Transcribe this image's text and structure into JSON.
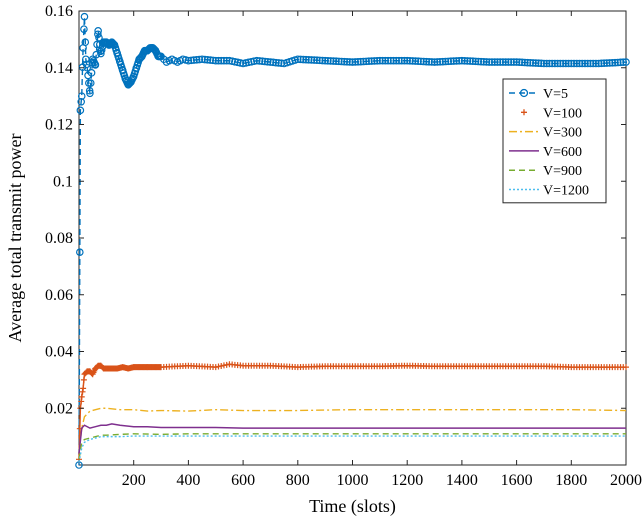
{
  "chart_data": {
    "type": "line",
    "xlabel": "Time (slots)",
    "ylabel": "Average total transmit power",
    "xlim": [
      0,
      2000
    ],
    "ylim": [
      0,
      0.16
    ],
    "xticks": [
      200,
      400,
      600,
      800,
      1000,
      1200,
      1400,
      1600,
      1800,
      2000
    ],
    "xtick_labels": [
      "200",
      "400",
      "600",
      "800",
      "1000",
      "1200",
      "1400",
      "1600",
      "1800",
      "2000"
    ],
    "yticks": [
      0.02,
      0.04,
      0.06,
      0.08,
      0.1,
      0.12,
      0.14,
      0.16
    ],
    "ytick_labels": [
      "0.02",
      "0.04",
      "0.06",
      "0.08",
      "0.1",
      "0.12",
      "0.14",
      "0.16"
    ],
    "grid": false,
    "legend_position": "top-right",
    "series": [
      {
        "name": "V=5",
        "color": "#0072BD",
        "line_style": "dashed",
        "marker": "circle",
        "x": [
          0,
          5,
          10,
          15,
          20,
          25,
          30,
          40,
          50,
          60,
          70,
          80,
          90,
          100,
          110,
          120,
          130,
          140,
          150,
          160,
          170,
          180,
          190,
          200,
          210,
          220,
          230,
          240,
          250,
          260,
          270,
          280,
          290,
          300,
          320,
          340,
          360,
          380,
          400,
          450,
          500,
          550,
          600,
          650,
          700,
          750,
          800,
          900,
          1000,
          1100,
          1200,
          1300,
          1400,
          1500,
          1600,
          1700,
          1800,
          1900,
          2000
        ],
        "y": [
          0.0,
          0.125,
          0.13,
          0.147,
          0.158,
          0.143,
          0.14,
          0.131,
          0.143,
          0.141,
          0.153,
          0.145,
          0.149,
          0.149,
          0.148,
          0.149,
          0.148,
          0.145,
          0.142,
          0.139,
          0.136,
          0.134,
          0.135,
          0.137,
          0.14,
          0.143,
          0.144,
          0.146,
          0.146,
          0.147,
          0.147,
          0.146,
          0.144,
          0.144,
          0.142,
          0.143,
          0.142,
          0.143,
          0.1425,
          0.143,
          0.1425,
          0.1425,
          0.1415,
          0.1425,
          0.142,
          0.1415,
          0.143,
          0.1425,
          0.142,
          0.1425,
          0.1425,
          0.142,
          0.1425,
          0.142,
          0.142,
          0.1415,
          0.1415,
          0.1415,
          0.142
        ]
      },
      {
        "name": "V=100",
        "color": "#D95319",
        "line_style": "solid",
        "marker": "plus",
        "x": [
          0,
          5,
          10,
          15,
          20,
          30,
          40,
          50,
          60,
          70,
          80,
          90,
          100,
          120,
          140,
          160,
          180,
          200,
          250,
          300,
          400,
          500,
          550,
          600,
          700,
          800,
          900,
          1000,
          1100,
          1200,
          1300,
          1400,
          1500,
          1600,
          1700,
          1800,
          1900,
          2000
        ],
        "y": [
          0.002,
          0.02,
          0.024,
          0.027,
          0.032,
          0.033,
          0.033,
          0.032,
          0.034,
          0.035,
          0.035,
          0.034,
          0.034,
          0.034,
          0.034,
          0.0345,
          0.034,
          0.0345,
          0.0345,
          0.0345,
          0.035,
          0.0345,
          0.0355,
          0.035,
          0.035,
          0.0345,
          0.0348,
          0.0348,
          0.0348,
          0.035,
          0.0348,
          0.0348,
          0.0348,
          0.0348,
          0.0348,
          0.0345,
          0.0345,
          0.0345
        ]
      },
      {
        "name": "V=300",
        "color": "#EDB120",
        "line_style": "dashdot",
        "marker": "none",
        "x": [
          0,
          10,
          20,
          40,
          60,
          80,
          100,
          150,
          200,
          250,
          300,
          400,
          500,
          600,
          800,
          1000,
          1200,
          1400,
          1600,
          1800,
          2000
        ],
        "y": [
          0.004,
          0.013,
          0.017,
          0.019,
          0.0195,
          0.02,
          0.02,
          0.0195,
          0.0195,
          0.019,
          0.0192,
          0.019,
          0.0195,
          0.0192,
          0.0192,
          0.0195,
          0.0195,
          0.0195,
          0.0195,
          0.0195,
          0.0192
        ]
      },
      {
        "name": "V=600",
        "color": "#7E2F8E",
        "line_style": "solid",
        "marker": "none",
        "x": [
          0,
          10,
          20,
          40,
          60,
          80,
          100,
          120,
          150,
          200,
          250,
          300,
          400,
          500,
          600,
          800,
          1000,
          1200,
          1400,
          1600,
          1800,
          2000
        ],
        "y": [
          0.004,
          0.013,
          0.014,
          0.013,
          0.0135,
          0.014,
          0.014,
          0.0145,
          0.014,
          0.0135,
          0.0135,
          0.0132,
          0.0132,
          0.0132,
          0.013,
          0.013,
          0.013,
          0.013,
          0.013,
          0.013,
          0.013,
          0.013
        ]
      },
      {
        "name": "V=900",
        "color": "#77AC30",
        "line_style": "dashed",
        "marker": "none",
        "x": [
          0,
          10,
          20,
          40,
          60,
          80,
          100,
          150,
          200,
          300,
          400,
          600,
          800,
          1000,
          1200,
          1400,
          1600,
          1800,
          2000
        ],
        "y": [
          0.002,
          0.008,
          0.009,
          0.0095,
          0.01,
          0.0105,
          0.0105,
          0.0108,
          0.011,
          0.0108,
          0.011,
          0.011,
          0.011,
          0.011,
          0.011,
          0.011,
          0.011,
          0.011,
          0.011
        ]
      },
      {
        "name": "V=1200",
        "color": "#4DBEEE",
        "line_style": "dotted",
        "marker": "none",
        "x": [
          0,
          10,
          20,
          40,
          60,
          80,
          100,
          150,
          200,
          300,
          400,
          600,
          800,
          1000,
          1200,
          1400,
          1600,
          1800,
          2000
        ],
        "y": [
          0.001,
          0.006,
          0.008,
          0.009,
          0.0095,
          0.01,
          0.01,
          0.01,
          0.0102,
          0.0102,
          0.0102,
          0.0102,
          0.0102,
          0.0102,
          0.0102,
          0.0102,
          0.0102,
          0.0102,
          0.0102
        ]
      }
    ]
  }
}
